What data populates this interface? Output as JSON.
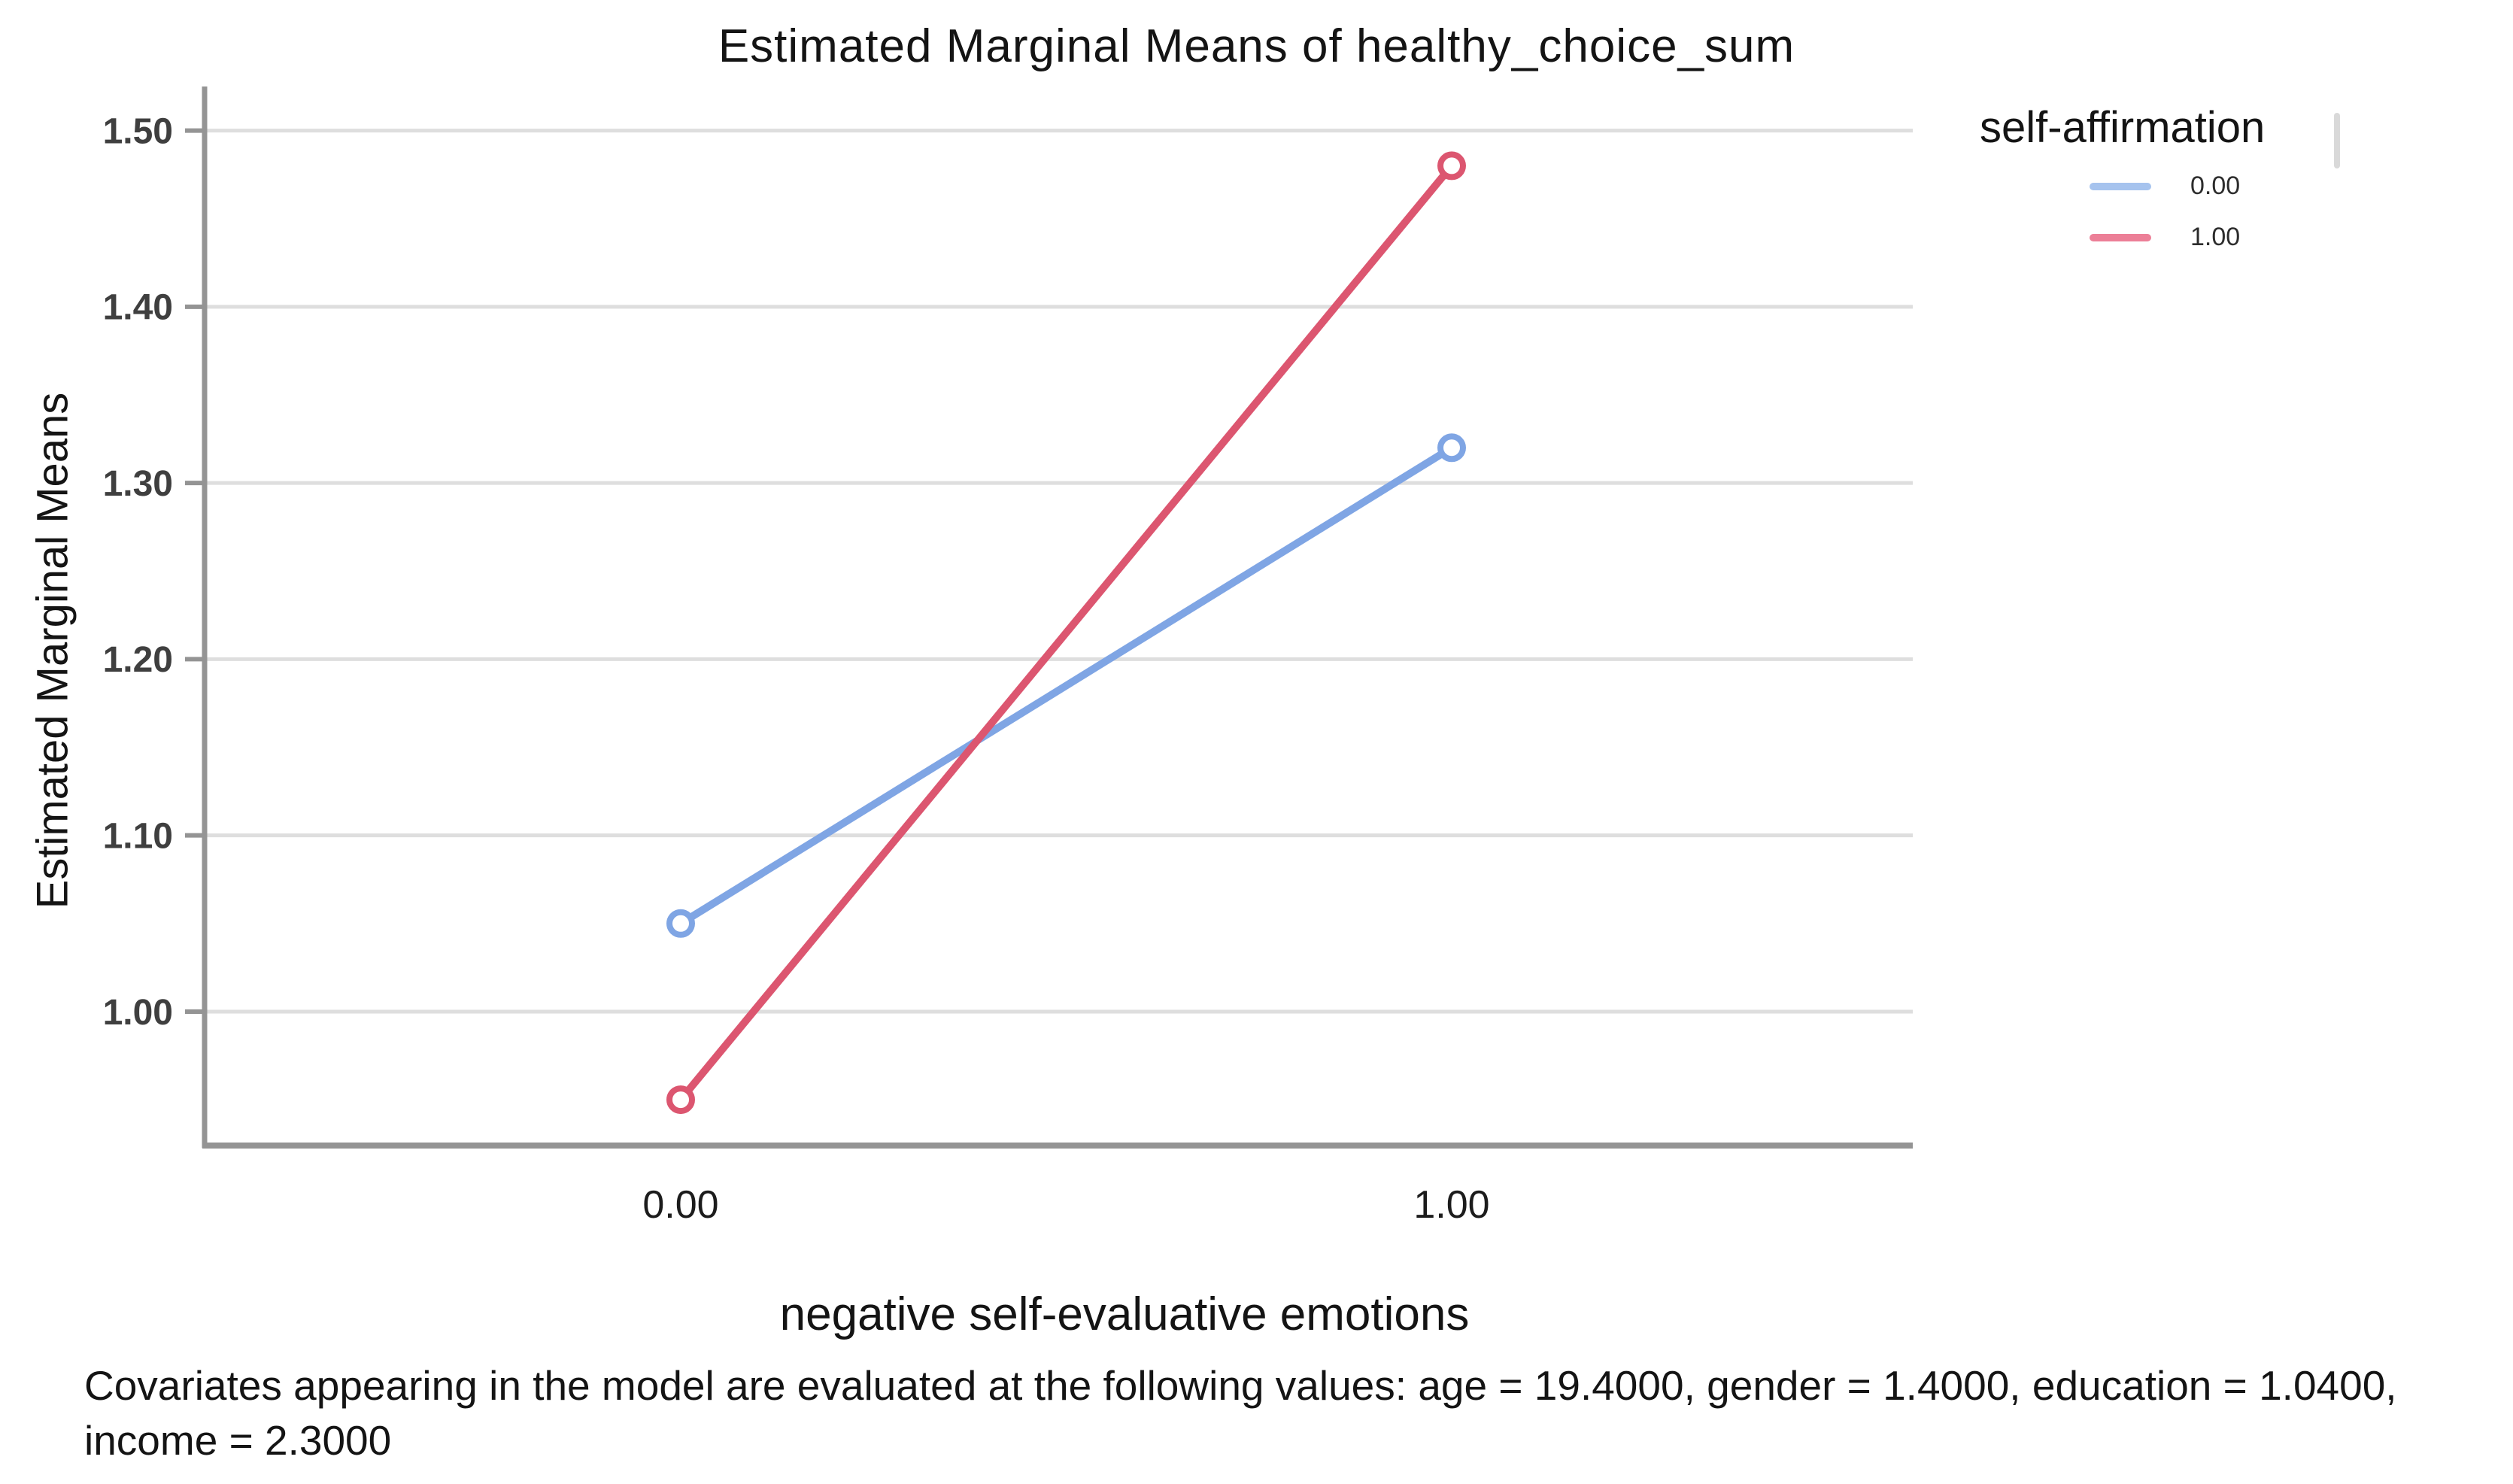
{
  "title": "Estimated Marginal Means of healthy_choice_sum",
  "y_axis": {
    "label": "Estimated Marginal Means",
    "tick_labels": [
      "1.50",
      "1.40",
      "1.30",
      "1.20",
      "1.10",
      "1.00"
    ]
  },
  "x_axis": {
    "label": "negative self-evaluative emotions",
    "tick_labels": [
      "0.00",
      "1.00"
    ]
  },
  "legend": {
    "title": "self-affirmation",
    "entries": [
      {
        "label": "0.00",
        "swatch_color": "#a6c3ee"
      },
      {
        "label": "1.00",
        "swatch_color": "#ec7f97"
      }
    ]
  },
  "footnote": "Covariates appearing in the model are evaluated at the following values: age = 19.4000, gender = 1.4000, education = 1.0400, income = 2.3000",
  "colors": {
    "series_blue": "#7fa5e4",
    "series_red": "#dc5670",
    "gridline": "#dedede",
    "axis": "#949494",
    "tick_text": "#3f3f3f"
  },
  "chart_data": {
    "type": "line",
    "title": "Estimated Marginal Means of healthy_choice_sum",
    "xlabel": "negative self-evaluative emotions",
    "ylabel": "Estimated Marginal Means",
    "categories": [
      "0.00",
      "1.00"
    ],
    "x": [
      0.0,
      1.0
    ],
    "series": [
      {
        "name": "0.00",
        "values": [
          1.05,
          1.32
        ],
        "color": "#7fa5e4"
      },
      {
        "name": "1.00",
        "values": [
          0.95,
          1.48
        ],
        "color": "#dc5670"
      }
    ],
    "yticks": [
      1.0,
      1.1,
      1.2,
      1.3,
      1.4,
      1.5
    ],
    "ytick_labels": [
      "1.00",
      "1.10",
      "1.20",
      "1.30",
      "1.40",
      "1.50"
    ],
    "ylim": [
      0.924,
      1.525
    ],
    "grid": "horizontal",
    "marker": "open-circle",
    "legend_title": "self-affirmation",
    "legend_position": "top-right"
  }
}
